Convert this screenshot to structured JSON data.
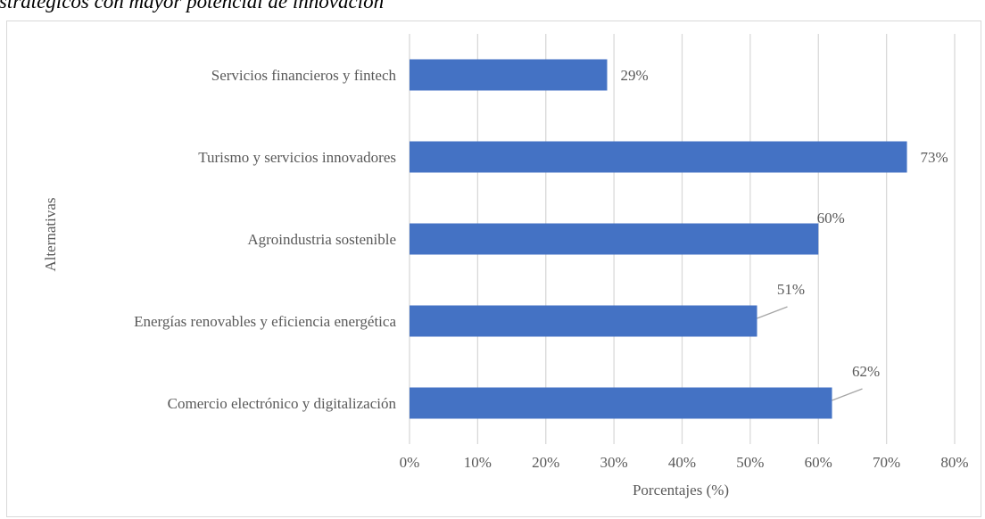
{
  "caption": "s estratégicos con mayor potencial de innovación",
  "chart_data": {
    "type": "bar",
    "orientation": "horizontal",
    "categories": [
      "Servicios financieros y fintech",
      "Turismo y servicios innovadores",
      "Agroindustria sostenible",
      "Energías renovables y eficiencia energética",
      "Comercio electrónico y digitalización"
    ],
    "values": [
      29,
      73,
      60,
      51,
      62
    ],
    "data_labels": [
      "29%",
      "73%",
      "60%",
      "51%",
      "62%"
    ],
    "xlabel": "Porcentajes (%)",
    "ylabel": "Alternativas",
    "xlim": [
      0,
      80
    ],
    "xticks": [
      0,
      10,
      20,
      30,
      40,
      50,
      60,
      70,
      80
    ],
    "xtick_labels": [
      "0%",
      "10%",
      "20%",
      "30%",
      "40%",
      "50%",
      "60%",
      "70%",
      "80%"
    ],
    "grid": true,
    "legend": "none",
    "bar_color": "#4472c4",
    "grid_color": "#d9d9d9",
    "text_color": "#595959"
  }
}
